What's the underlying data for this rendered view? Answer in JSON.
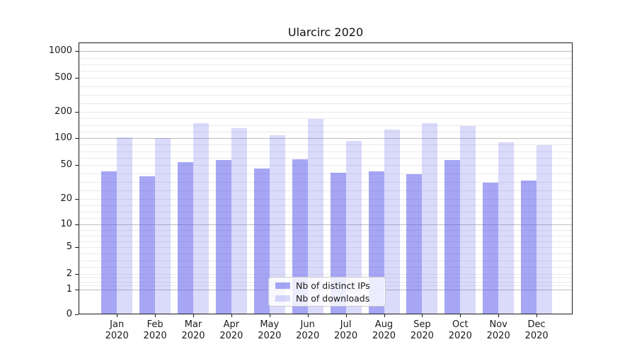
{
  "chart_data": {
    "type": "bar",
    "title": "Ularcirc 2020",
    "months": [
      "Jan",
      "Feb",
      "Mar",
      "Apr",
      "May",
      "Jun",
      "Jul",
      "Aug",
      "Sep",
      "Oct",
      "Nov",
      "Dec"
    ],
    "year": "2020",
    "series": [
      {
        "name": "Nb of distinct IPs",
        "key": "distinct-ips",
        "color": "rgba(85,85,235,0.52)",
        "values": [
          42,
          37,
          54,
          57,
          45,
          58,
          40,
          42,
          39,
          57,
          31,
          33
        ]
      },
      {
        "name": "Nb of downloads",
        "key": "downloads",
        "color": "rgba(85,85,235,0.22)",
        "values": [
          102,
          100,
          150,
          131,
          108,
          168,
          93,
          125,
          149,
          139,
          90,
          83
        ]
      }
    ],
    "y_ticks": [
      0,
      1,
      2,
      5,
      10,
      20,
      50,
      100,
      200,
      500,
      1000
    ],
    "y_scale": "symlog",
    "grid": true,
    "legend_position": "lower-center-inside",
    "colors": {
      "axis": "#1a1a1a",
      "major_grid": "#bdbdbd",
      "minor_grid": "#e9e9e9",
      "title_text": "#111111"
    }
  }
}
